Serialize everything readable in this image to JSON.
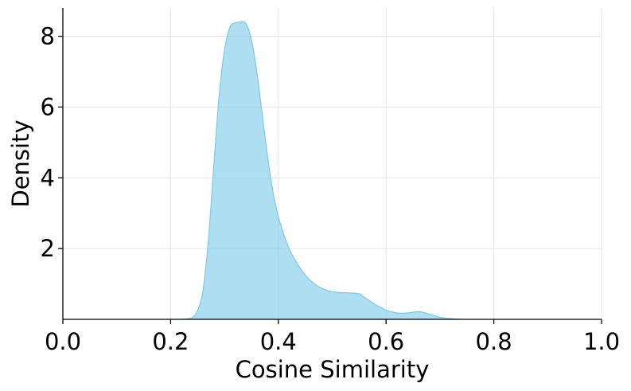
{
  "chart_data": {
    "type": "area",
    "xlabel": "Cosine Similarity",
    "ylabel": "Density",
    "xlim": [
      0.0,
      1.0
    ],
    "ylim": [
      0,
      8.8
    ],
    "xticks": [
      "0.0",
      "0.2",
      "0.4",
      "0.6",
      "0.8",
      "1.0"
    ],
    "yticks": [
      "2",
      "4",
      "6",
      "8"
    ],
    "grid": true,
    "fill_color": "#87ceeb",
    "fill_opacity": 0.68,
    "line_color": "#7ec8e6",
    "series": [
      {
        "x": [
          0.22,
          0.24,
          0.25,
          0.26,
          0.27,
          0.28,
          0.29,
          0.3,
          0.31,
          0.32,
          0.33,
          0.34,
          0.35,
          0.36,
          0.37,
          0.38,
          0.39,
          0.4,
          0.41,
          0.42,
          0.43,
          0.45,
          0.47,
          0.49,
          0.51,
          0.53,
          0.55,
          0.56,
          0.58,
          0.6,
          0.62,
          0.64,
          0.66,
          0.68,
          0.7,
          0.72,
          0.74
        ],
        "y": [
          0.0,
          0.05,
          0.25,
          0.8,
          2.2,
          4.3,
          6.3,
          7.6,
          8.25,
          8.38,
          8.4,
          8.35,
          7.9,
          7.0,
          5.8,
          4.6,
          3.6,
          2.9,
          2.4,
          2.0,
          1.7,
          1.25,
          0.97,
          0.82,
          0.76,
          0.75,
          0.72,
          0.62,
          0.42,
          0.26,
          0.18,
          0.18,
          0.22,
          0.15,
          0.06,
          0.02,
          0.0
        ]
      }
    ]
  }
}
